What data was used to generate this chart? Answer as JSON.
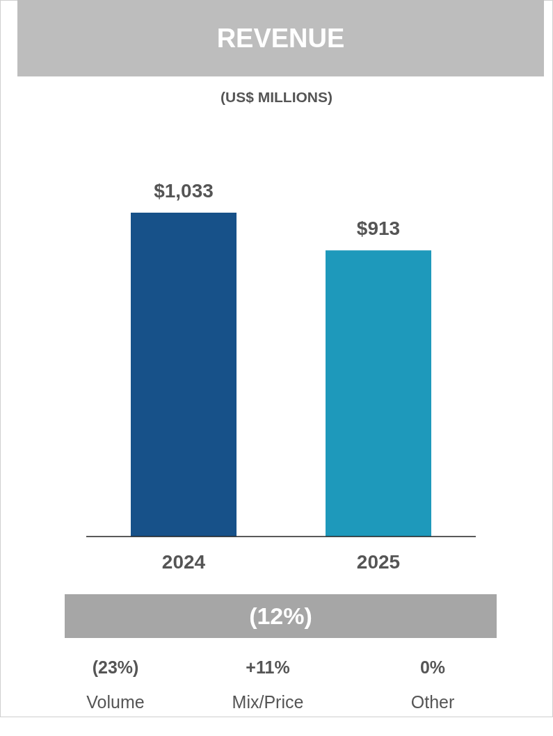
{
  "chart_data": {
    "type": "bar",
    "title": "REVENUE",
    "subtitle": "(US$ MILLIONS)",
    "categories": [
      "2024",
      "2025"
    ],
    "values": [
      1033,
      913
    ],
    "colors": [
      "#175189",
      "#1e99bb"
    ],
    "value_labels": [
      "$1,033",
      "$913"
    ],
    "annotations": [
      "(12%)",
      "(23%)",
      "Volume",
      "+11%",
      "Mix/Price",
      "0%",
      "Other"
    ]
  }
}
